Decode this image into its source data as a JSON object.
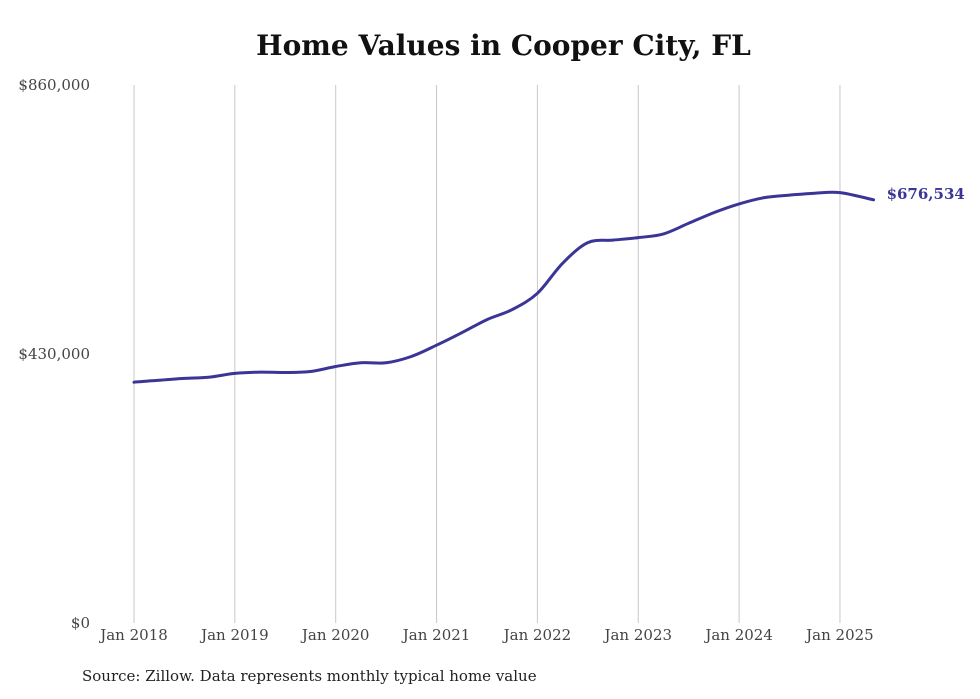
{
  "chart_data": {
    "type": "line",
    "title": "Home Values in Cooper City, FL",
    "xlabel": "",
    "ylabel": "",
    "ylim": [
      0,
      860000
    ],
    "y_ticks": [
      {
        "value": 0,
        "label": "$0"
      },
      {
        "value": 430000,
        "label": "$430,000"
      },
      {
        "value": 860000,
        "label": "$860,000"
      }
    ],
    "x_ticks": [
      {
        "value": 2018.0,
        "label": "Jan 2018"
      },
      {
        "value": 2019.0,
        "label": "Jan 2019"
      },
      {
        "value": 2020.0,
        "label": "Jan 2020"
      },
      {
        "value": 2021.0,
        "label": "Jan 2021"
      },
      {
        "value": 2022.0,
        "label": "Jan 2022"
      },
      {
        "value": 2023.0,
        "label": "Jan 2023"
      },
      {
        "value": 2024.0,
        "label": "Jan 2024"
      },
      {
        "value": 2025.0,
        "label": "Jan 2025"
      }
    ],
    "xlim": [
      2018.0,
      2025.37
    ],
    "grid": {
      "vertical": true,
      "horizontal": false
    },
    "series": [
      {
        "color": "#3a3596",
        "points": [
          {
            "x": "2018-01",
            "y": 385000
          },
          {
            "x": "2018-04",
            "y": 388000
          },
          {
            "x": "2018-07",
            "y": 391000
          },
          {
            "x": "2018-10",
            "y": 393000
          },
          {
            "x": "2019-01",
            "y": 399000
          },
          {
            "x": "2019-04",
            "y": 401000
          },
          {
            "x": "2019-07",
            "y": 400500
          },
          {
            "x": "2019-10",
            "y": 402000
          },
          {
            "x": "2020-01",
            "y": 410000
          },
          {
            "x": "2020-04",
            "y": 416000
          },
          {
            "x": "2020-07",
            "y": 416000
          },
          {
            "x": "2020-10",
            "y": 426000
          },
          {
            "x": "2021-01",
            "y": 444000
          },
          {
            "x": "2021-04",
            "y": 464000
          },
          {
            "x": "2021-07",
            "y": 485000
          },
          {
            "x": "2021-10",
            "y": 501000
          },
          {
            "x": "2022-01",
            "y": 527000
          },
          {
            "x": "2022-04",
            "y": 575000
          },
          {
            "x": "2022-07",
            "y": 608000
          },
          {
            "x": "2022-10",
            "y": 612000
          },
          {
            "x": "2023-01",
            "y": 616000
          },
          {
            "x": "2023-04",
            "y": 622000
          },
          {
            "x": "2023-07",
            "y": 639000
          },
          {
            "x": "2023-10",
            "y": 656000
          },
          {
            "x": "2024-01",
            "y": 670000
          },
          {
            "x": "2024-04",
            "y": 680000
          },
          {
            "x": "2024-07",
            "y": 684000
          },
          {
            "x": "2024-10",
            "y": 687000
          },
          {
            "x": "2025-01",
            "y": 688000
          },
          {
            "x": "2025-05",
            "y": 676534
          }
        ]
      }
    ],
    "end_label": "$676,534",
    "source": "Source: Zillow. Data represents monthly typical home value"
  }
}
